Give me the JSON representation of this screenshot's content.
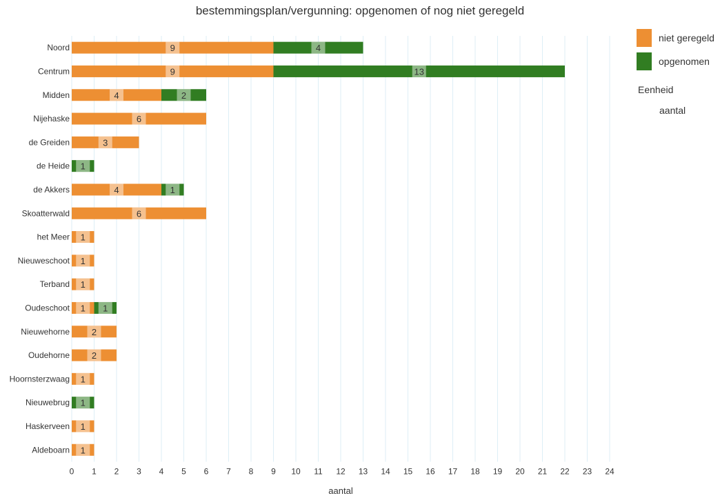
{
  "chart_data": {
    "type": "bar",
    "orientation": "horizontal",
    "stacked": true,
    "title": "bestemmingsplan/vergunning: opgenomen of nog niet geregeld",
    "xlabel": "aantal",
    "xlim": [
      0,
      24
    ],
    "xticks": [
      "0",
      "1",
      "2",
      "3",
      "4",
      "5",
      "6",
      "7",
      "8",
      "9",
      "10",
      "11",
      "12",
      "13",
      "14",
      "15",
      "16",
      "17",
      "18",
      "19",
      "20",
      "21",
      "22",
      "23",
      "24"
    ],
    "grid": true,
    "legend_position": "right",
    "categories": [
      "Noord",
      "Centrum",
      "Midden",
      "Nijehaske",
      "de Greiden",
      "de Heide",
      "de Akkers",
      "Skoatterwald",
      "het Meer",
      "Nieuweschoot",
      "Terband",
      "Oudeschoot",
      "Nieuwehorne",
      "Oudehorne",
      "Hoornsterzwaag",
      "Nieuwebrug",
      "Haskerveen",
      "Aldeboarn"
    ],
    "series": [
      {
        "name": "niet geregeld",
        "color": "#ed8f33",
        "values": [
          9,
          9,
          4,
          6,
          3,
          0,
          4,
          6,
          1,
          1,
          1,
          1,
          2,
          2,
          1,
          0,
          1,
          1
        ]
      },
      {
        "name": "opgenomen",
        "color": "#317d22",
        "values": [
          4,
          13,
          2,
          0,
          0,
          1,
          1,
          0,
          0,
          0,
          0,
          1,
          0,
          0,
          0,
          1,
          0,
          0
        ]
      }
    ],
    "legend_extra": {
      "title": "Eenheid",
      "value": "aantal"
    }
  }
}
